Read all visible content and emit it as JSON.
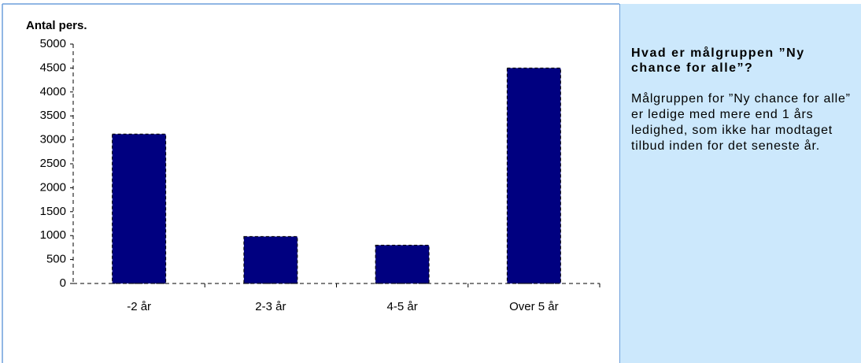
{
  "chart_data": {
    "type": "bar",
    "y_label": "Antal pers.",
    "categories": [
      "-2 år",
      "2-3 år",
      "4-5 år",
      "Over 5 år"
    ],
    "values": [
      3120,
      980,
      800,
      4500
    ],
    "color": "#000080",
    "ylim": [
      0,
      5000
    ],
    "yticks": [
      0,
      500,
      1000,
      1500,
      2000,
      2500,
      3000,
      3500,
      4000,
      4500,
      5000
    ]
  },
  "panel": {
    "heading": "Hvad er målgruppen ”Ny chance for alle”?",
    "body": "Målgruppen for ”Ny chance for alle” er ledige med mere end 1 års ledighed, som ikke har modtaget tilbud inden for det seneste år."
  }
}
